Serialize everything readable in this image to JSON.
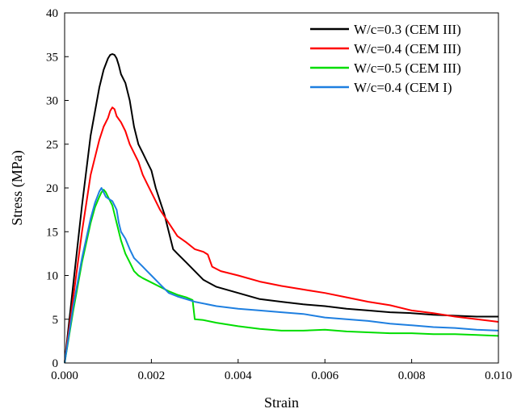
{
  "chart_data": {
    "type": "line",
    "xlabel": "Strain",
    "ylabel": "Stress (MPa)",
    "xlim": [
      0,
      0.01
    ],
    "ylim": [
      0,
      40
    ],
    "xticks": [
      0,
      0.002,
      0.004,
      0.006,
      0.008,
      0.01
    ],
    "xtick_labels": [
      "0.000",
      "0.002",
      "0.004",
      "0.006",
      "0.008",
      "0.010"
    ],
    "yticks": [
      0,
      5,
      10,
      15,
      20,
      25,
      30,
      35,
      40
    ],
    "ytick_labels": [
      "0",
      "5",
      "10",
      "15",
      "20",
      "25",
      "30",
      "35",
      "40"
    ],
    "grid": false,
    "legend_position": "top-right",
    "series": [
      {
        "name": "W/c=0.3 (CEM III)",
        "color": "#000000",
        "x": [
          0,
          0.0002,
          0.0004,
          0.0006,
          0.0008,
          0.0009,
          0.001,
          0.00105,
          0.0011,
          0.00115,
          0.0012,
          0.00125,
          0.0013,
          0.0014,
          0.0015,
          0.0016,
          0.0017,
          0.0018,
          0.0019,
          0.002,
          0.0021,
          0.0022,
          0.0023,
          0.0024,
          0.0025,
          0.0026,
          0.0028,
          0.003,
          0.0032,
          0.0035,
          0.004,
          0.0045,
          0.005,
          0.0055,
          0.006,
          0.0065,
          0.007,
          0.0075,
          0.008,
          0.0085,
          0.009,
          0.0095,
          0.01
        ],
        "values": [
          0,
          9,
          18,
          26,
          31.5,
          33.5,
          34.8,
          35.2,
          35.3,
          35.2,
          34.8,
          34,
          33,
          32,
          30,
          27,
          25,
          24,
          23,
          22,
          20,
          18.5,
          17,
          15,
          13,
          12.5,
          11.5,
          10.5,
          9.5,
          8.7,
          8,
          7.3,
          7,
          6.7,
          6.5,
          6.2,
          6,
          5.8,
          5.7,
          5.5,
          5.4,
          5.3,
          5.3
        ]
      },
      {
        "name": "W/c=0.4 (CEM III)",
        "color": "#ff0000",
        "x": [
          0,
          0.0002,
          0.0004,
          0.0006,
          0.0008,
          0.0009,
          0.001,
          0.00105,
          0.0011,
          0.00115,
          0.0012,
          0.0013,
          0.0014,
          0.0015,
          0.0016,
          0.0017,
          0.0018,
          0.0019,
          0.002,
          0.0022,
          0.0024,
          0.0026,
          0.0028,
          0.003,
          0.0032,
          0.0033,
          0.0034,
          0.0036,
          0.004,
          0.0045,
          0.005,
          0.0055,
          0.006,
          0.0065,
          0.007,
          0.0075,
          0.008,
          0.0085,
          0.009,
          0.0095,
          0.01
        ],
        "values": [
          0,
          7.5,
          15,
          21.5,
          25.5,
          27,
          28,
          28.8,
          29.2,
          29,
          28.2,
          27.5,
          26.5,
          25,
          24,
          23,
          21.5,
          20.5,
          19.5,
          17.5,
          16,
          14.5,
          13.8,
          13,
          12.7,
          12.4,
          11,
          10.5,
          10,
          9.3,
          8.8,
          8.4,
          8,
          7.5,
          7,
          6.6,
          6,
          5.7,
          5.3,
          5,
          4.7
        ]
      },
      {
        "name": "W/c=0.5 (CEM III)",
        "color": "#00dd00",
        "x": [
          0,
          0.0002,
          0.0004,
          0.0006,
          0.0007,
          0.0008,
          0.00085,
          0.0009,
          0.00095,
          0.001,
          0.0011,
          0.0012,
          0.0013,
          0.0014,
          0.0015,
          0.0016,
          0.0017,
          0.0018,
          0.002,
          0.0022,
          0.0024,
          0.0026,
          0.0028,
          0.00295,
          0.003,
          0.0032,
          0.0035,
          0.004,
          0.0045,
          0.005,
          0.0055,
          0.006,
          0.0065,
          0.007,
          0.0075,
          0.008,
          0.0085,
          0.009,
          0.0095,
          0.01
        ],
        "values": [
          0,
          6,
          11.5,
          16,
          17.8,
          19,
          19.5,
          19.8,
          19.5,
          19,
          18,
          16,
          14,
          12.5,
          11.5,
          10.5,
          10,
          9.7,
          9.2,
          8.7,
          8.2,
          7.8,
          7.5,
          7.2,
          5,
          4.9,
          4.6,
          4.2,
          3.9,
          3.7,
          3.7,
          3.8,
          3.6,
          3.5,
          3.4,
          3.4,
          3.3,
          3.3,
          3.2,
          3.1
        ]
      },
      {
        "name": "W/c=0.4 (CEM I)",
        "color": "#1e7fe0",
        "x": [
          0,
          0.0002,
          0.0004,
          0.0006,
          0.0007,
          0.0008,
          0.00085,
          0.0009,
          0.00095,
          0.001,
          0.0011,
          0.0012,
          0.00125,
          0.0013,
          0.0014,
          0.0015,
          0.0016,
          0.0017,
          0.0018,
          0.0019,
          0.002,
          0.0022,
          0.0024,
          0.0026,
          0.0028,
          0.003,
          0.0035,
          0.004,
          0.0045,
          0.005,
          0.0055,
          0.006,
          0.0065,
          0.007,
          0.0075,
          0.008,
          0.0085,
          0.009,
          0.0095,
          0.01
        ],
        "values": [
          0,
          6.5,
          12,
          16.5,
          18.3,
          19.6,
          20,
          19.5,
          19,
          18.8,
          18.5,
          17.5,
          16,
          15,
          14.2,
          13,
          12,
          11.5,
          11,
          10.5,
          10,
          9,
          8,
          7.6,
          7.3,
          7,
          6.5,
          6.2,
          6,
          5.8,
          5.6,
          5.2,
          5,
          4.8,
          4.5,
          4.3,
          4.1,
          4,
          3.8,
          3.7
        ]
      }
    ]
  }
}
